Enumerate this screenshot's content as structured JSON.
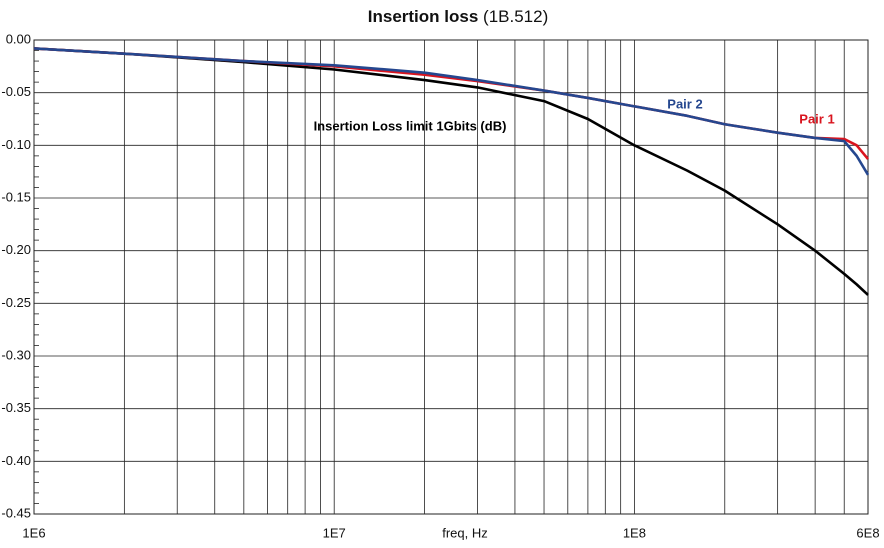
{
  "chart_data": {
    "type": "line",
    "title": "Insertion loss",
    "subtitle": "(1B.512)",
    "xlabel": "freq, Hz",
    "xlog": true,
    "grid": true,
    "xlim": [
      1000000,
      600000000
    ],
    "xticks": [
      {
        "value": 1000000,
        "label": "1E6"
      },
      {
        "value": 10000000,
        "label": "1E7"
      },
      {
        "value": 100000000,
        "label": "1E8"
      },
      {
        "value": 600000000,
        "label": "6E8"
      }
    ],
    "ylim": [
      -0.45,
      0
    ],
    "yticks": [
      {
        "value": 0,
        "label": "0.00"
      },
      {
        "value": -0.05,
        "label": "-0.05"
      },
      {
        "value": -0.1,
        "label": "-0.10"
      },
      {
        "value": -0.15,
        "label": "-0.15"
      },
      {
        "value": -0.2,
        "label": "-0.20"
      },
      {
        "value": -0.25,
        "label": "-0.25"
      },
      {
        "value": -0.3,
        "label": "-0.30"
      },
      {
        "value": -0.35,
        "label": "-0.35"
      },
      {
        "value": -0.4,
        "label": "-0.40"
      },
      {
        "value": -0.45,
        "label": "-0.45"
      }
    ],
    "x": [
      1000000,
      2000000,
      5000000,
      10000000,
      20000000,
      30000000,
      50000000,
      70000000,
      100000000,
      150000000,
      200000000,
      300000000,
      400000000,
      500000000,
      550000000,
      600000000
    ],
    "series": [
      {
        "name": "Insertion Loss limit 1Gbits (dB)",
        "color": "#000000",
        "values": [
          -0.008,
          -0.013,
          -0.021,
          -0.028,
          -0.038,
          -0.045,
          -0.058,
          -0.075,
          -0.1,
          -0.124,
          -0.143,
          -0.175,
          -0.2,
          -0.222,
          -0.232,
          -0.242
        ]
      },
      {
        "name": "Pair 1",
        "color": "#d9141e",
        "values": [
          -0.008,
          -0.013,
          -0.02,
          -0.025,
          -0.033,
          -0.039,
          -0.048,
          -0.055,
          -0.063,
          -0.072,
          -0.08,
          -0.088,
          -0.093,
          -0.094,
          -0.1,
          -0.113
        ]
      },
      {
        "name": "Pair 2",
        "color": "#25478f",
        "values": [
          -0.008,
          -0.013,
          -0.02,
          -0.024,
          -0.031,
          -0.038,
          -0.048,
          -0.055,
          -0.063,
          -0.072,
          -0.08,
          -0.088,
          -0.093,
          -0.096,
          -0.11,
          -0.128
        ]
      }
    ]
  }
}
